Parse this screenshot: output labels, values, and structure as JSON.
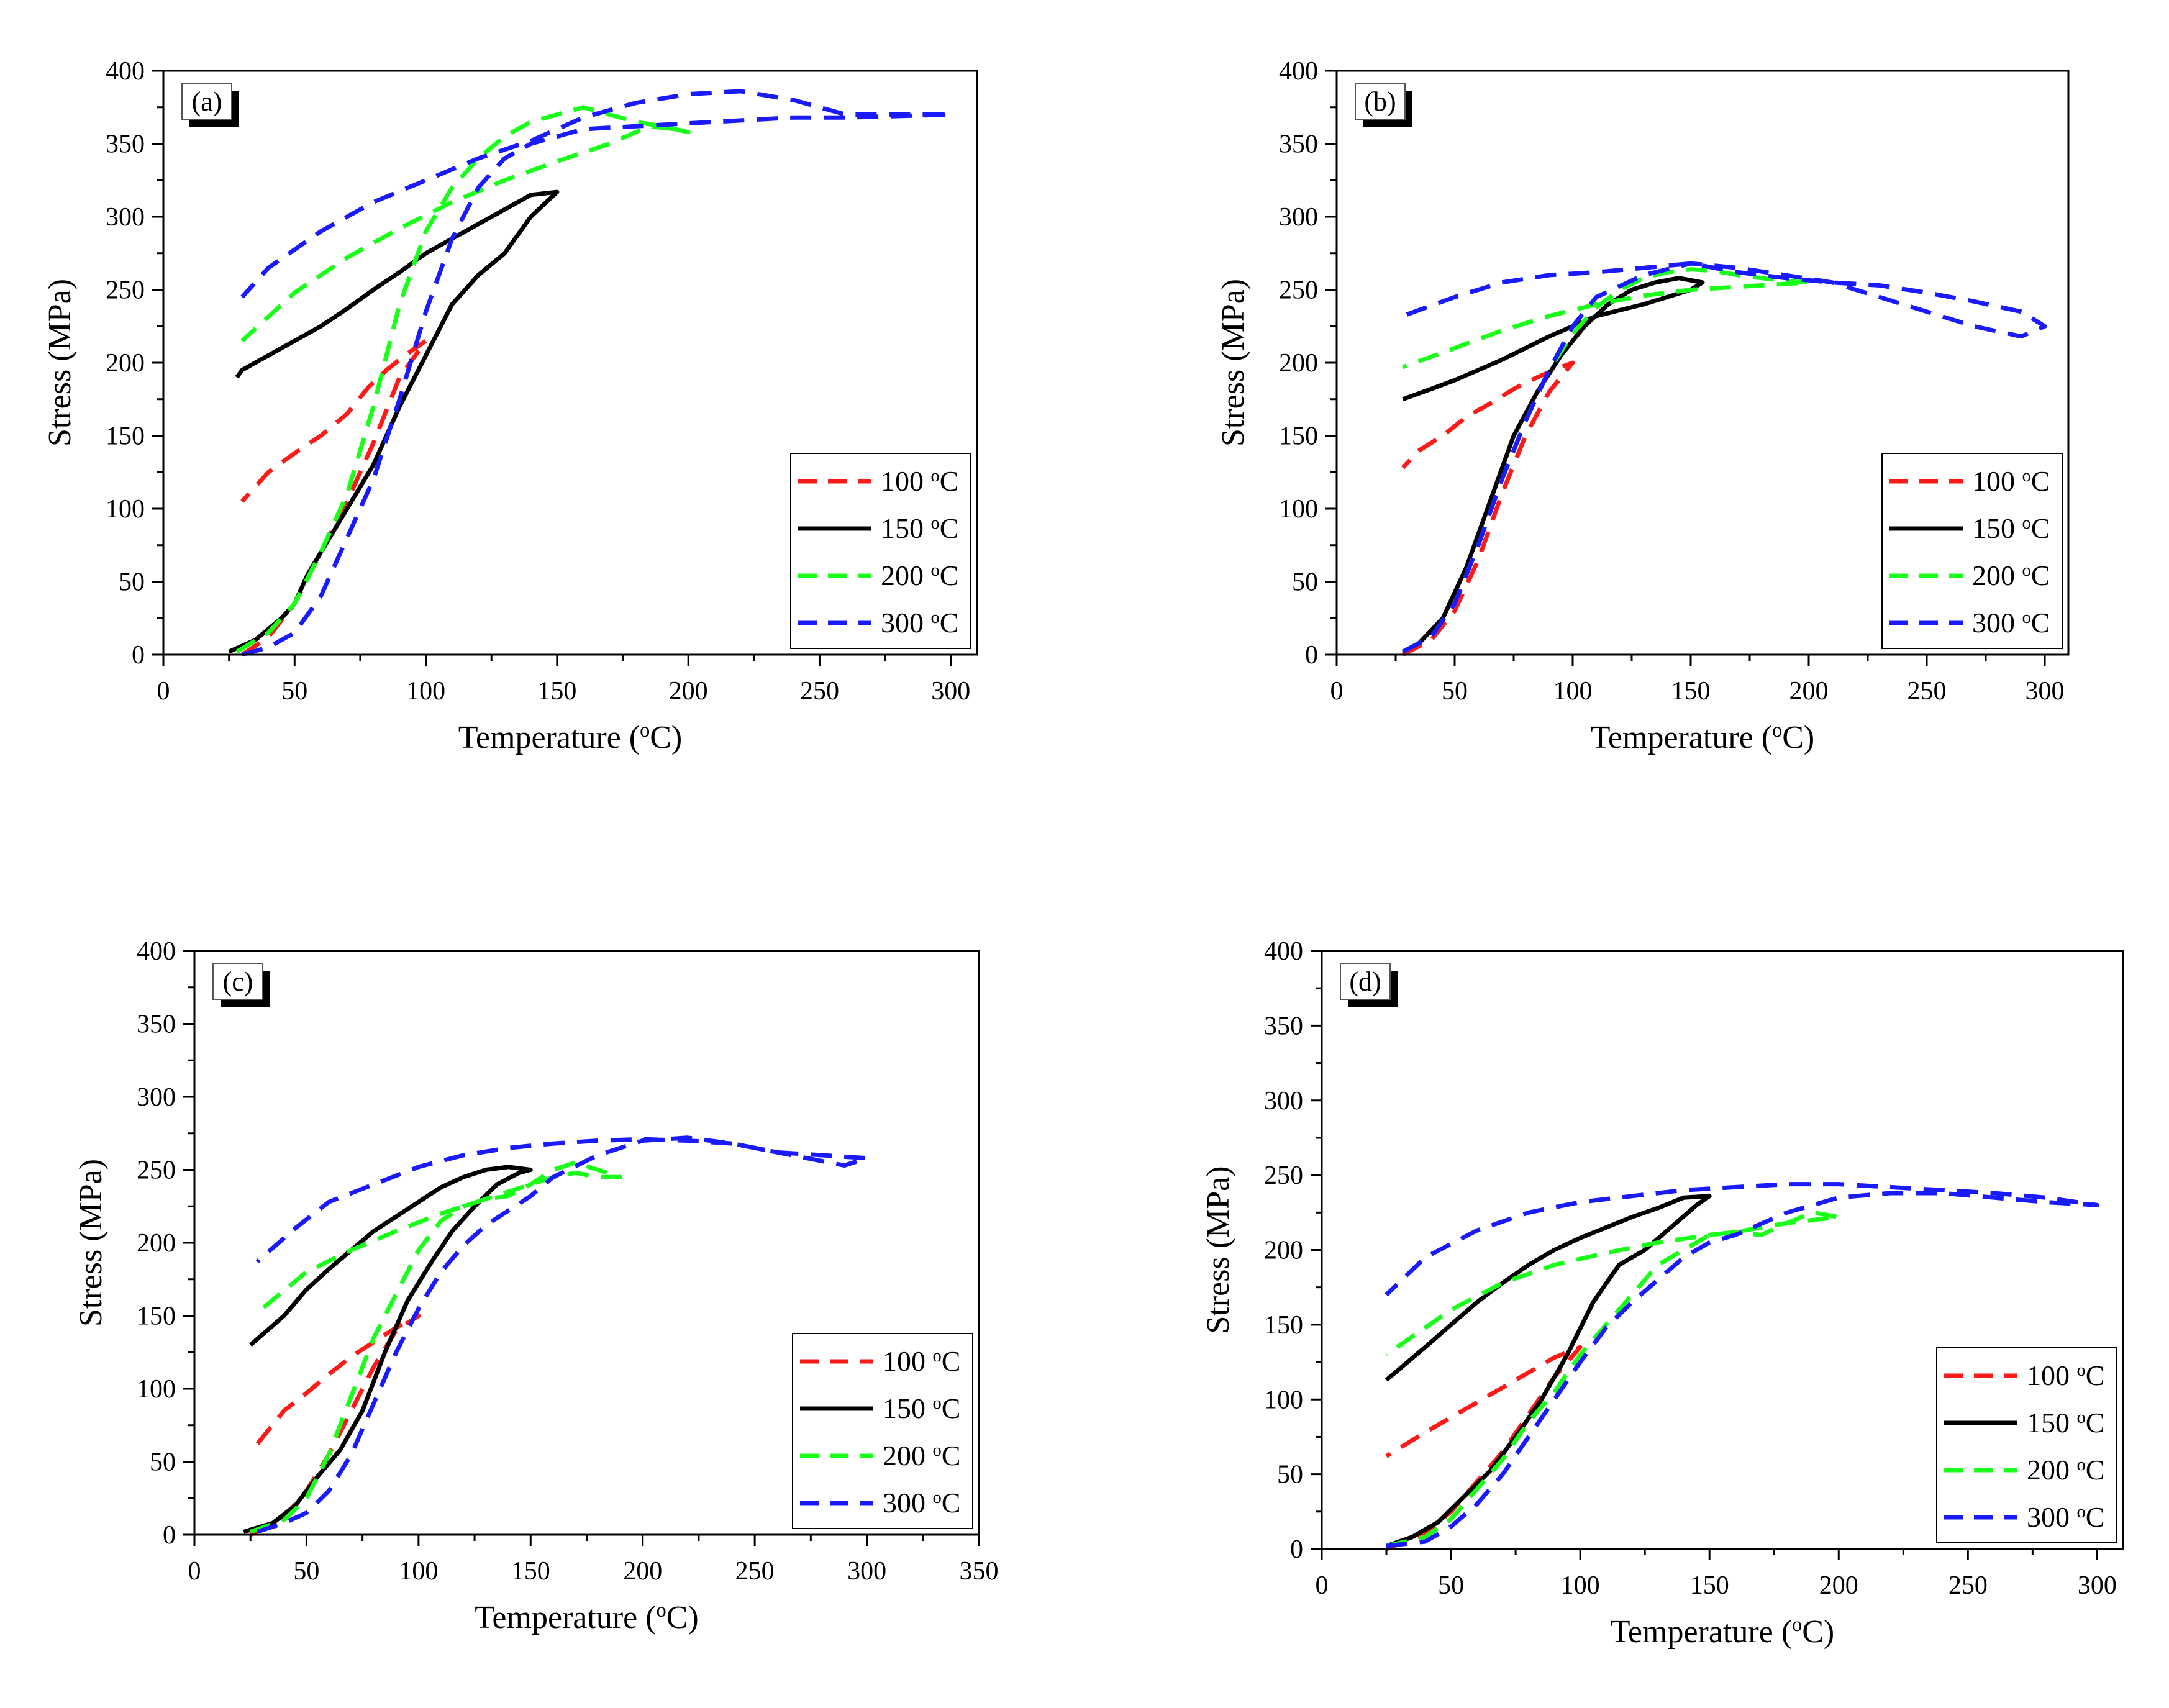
{
  "chart_data": [
    {
      "panel_label": "(a)",
      "type": "line",
      "xlabel": "Temperature (°C)",
      "ylabel": "Stress (MPa)",
      "xlim": [
        0,
        310
      ],
      "ylim": [
        0,
        400
      ],
      "xticks": [
        0,
        50,
        100,
        150,
        200,
        250,
        300
      ],
      "yticks": [
        0,
        50,
        100,
        150,
        200,
        250,
        300,
        350,
        400
      ],
      "legend": "bottom-right",
      "series": [
        {
          "name": "100 °C",
          "color": "#ff1a1a",
          "style": "dashed",
          "x": [
            30,
            40,
            50,
            60,
            70,
            80,
            90,
            100,
            92,
            85,
            78,
            70,
            60,
            50,
            40,
            30
          ],
          "y": [
            0,
            12,
            35,
            70,
            105,
            145,
            190,
            215,
            205,
            195,
            183,
            165,
            150,
            138,
            125,
            105
          ]
        },
        {
          "name": "150 °C",
          "color": "#000000",
          "style": "solid",
          "x": [
            25,
            35,
            45,
            50,
            55,
            60,
            70,
            80,
            90,
            100,
            110,
            120,
            130,
            140,
            150,
            140,
            130,
            120,
            110,
            100,
            90,
            80,
            70,
            60,
            50,
            40,
            30,
            28
          ],
          "y": [
            2,
            10,
            25,
            35,
            55,
            70,
            100,
            130,
            170,
            205,
            240,
            260,
            275,
            300,
            317,
            315,
            305,
            295,
            285,
            275,
            262,
            250,
            237,
            225,
            215,
            205,
            195,
            190
          ]
        },
        {
          "name": "200 °C",
          "color": "#1aff1a",
          "style": "dashed",
          "x": [
            28,
            40,
            50,
            60,
            70,
            80,
            90,
            100,
            110,
            120,
            130,
            140,
            150,
            160,
            170,
            180,
            190,
            200,
            195,
            185,
            170,
            150,
            130,
            110,
            90,
            70,
            50,
            30
          ],
          "y": [
            2,
            15,
            35,
            70,
            110,
            170,
            240,
            290,
            320,
            340,
            355,
            365,
            370,
            375,
            370,
            365,
            362,
            358,
            360,
            362,
            350,
            338,
            325,
            310,
            292,
            272,
            248,
            215
          ]
        },
        {
          "name": "300 °C",
          "color": "#1a1aff",
          "style": "dashed",
          "x": [
            30,
            40,
            50,
            60,
            70,
            80,
            90,
            100,
            110,
            120,
            130,
            140,
            150,
            160,
            180,
            200,
            220,
            240,
            260,
            280,
            300,
            280,
            260,
            240,
            220,
            200,
            180,
            160,
            140,
            120,
            100,
            80,
            60,
            40,
            30
          ],
          "y": [
            0,
            5,
            15,
            40,
            80,
            120,
            175,
            235,
            285,
            320,
            340,
            350,
            355,
            360,
            362,
            364,
            366,
            368,
            368,
            369,
            370,
            370,
            370,
            380,
            386,
            384,
            378,
            368,
            352,
            340,
            325,
            310,
            290,
            265,
            245
          ]
        }
      ]
    },
    {
      "panel_label": "(b)",
      "type": "line",
      "xlabel": "Temperature (°C)",
      "ylabel": "Stress (MPa)",
      "xlim": [
        0,
        310
      ],
      "ylim": [
        0,
        400
      ],
      "xticks": [
        0,
        50,
        100,
        150,
        200,
        250,
        300
      ],
      "yticks": [
        0,
        50,
        100,
        150,
        200,
        250,
        300,
        350,
        400
      ],
      "legend": "bottom-right",
      "series": [
        {
          "name": "100 °C",
          "color": "#ff1a1a",
          "style": "dashed",
          "x": [
            28,
            40,
            50,
            60,
            70,
            80,
            90,
            100,
            95,
            85,
            75,
            65,
            55,
            45,
            35,
            28
          ],
          "y": [
            0,
            10,
            30,
            65,
            110,
            150,
            180,
            200,
            197,
            190,
            182,
            172,
            163,
            150,
            140,
            128
          ]
        },
        {
          "name": "150 °C",
          "color": "#000000",
          "style": "solid",
          "x": [
            28,
            35,
            45,
            55,
            65,
            75,
            85,
            95,
            105,
            115,
            125,
            135,
            145,
            155,
            150,
            140,
            130,
            120,
            110,
            100,
            90,
            80,
            70,
            60,
            50,
            40,
            28
          ],
          "y": [
            2,
            8,
            25,
            60,
            105,
            150,
            180,
            205,
            225,
            240,
            250,
            255,
            258,
            255,
            250,
            245,
            240,
            236,
            232,
            225,
            218,
            210,
            202,
            195,
            188,
            182,
            175
          ]
        },
        {
          "name": "200 °C",
          "color": "#1aff1a",
          "style": "dashed",
          "x": [
            28,
            40,
            50,
            60,
            70,
            80,
            90,
            100,
            110,
            120,
            130,
            140,
            150,
            160,
            170,
            180,
            190,
            200,
            190,
            170,
            150,
            130,
            110,
            90,
            70,
            50,
            28
          ],
          "y": [
            2,
            12,
            35,
            75,
            120,
            160,
            195,
            220,
            238,
            250,
            258,
            262,
            264,
            263,
            260,
            258,
            256,
            255,
            254,
            252,
            250,
            246,
            240,
            232,
            222,
            210,
            197
          ]
        },
        {
          "name": "300 °C",
          "color": "#1a1aff",
          "style": "dashed",
          "x": [
            28,
            40,
            50,
            60,
            70,
            80,
            90,
            100,
            110,
            130,
            150,
            170,
            190,
            210,
            230,
            250,
            270,
            290,
            300,
            290,
            270,
            250,
            230,
            210,
            190,
            170,
            150,
            130,
            110,
            90,
            70,
            50,
            28
          ],
          "y": [
            2,
            12,
            35,
            75,
            120,
            160,
            195,
            225,
            245,
            260,
            268,
            265,
            260,
            255,
            245,
            235,
            225,
            218,
            225,
            235,
            242,
            248,
            253,
            255,
            258,
            262,
            268,
            265,
            262,
            260,
            255,
            245,
            232
          ]
        }
      ]
    },
    {
      "panel_label": "(c)",
      "type": "line",
      "xlabel": "Temperature (°C)",
      "ylabel": "Stress (MPa)",
      "xlim": [
        0,
        350
      ],
      "ylim": [
        0,
        400
      ],
      "xticks": [
        0,
        50,
        100,
        150,
        200,
        250,
        300,
        350
      ],
      "yticks": [
        0,
        50,
        100,
        150,
        200,
        250,
        300,
        350,
        400
      ],
      "legend": "bottom-right",
      "series": [
        {
          "name": "100 °C",
          "color": "#ff1a1a",
          "style": "dashed",
          "x": [
            25,
            40,
            50,
            60,
            70,
            80,
            90,
            100,
            90,
            80,
            70,
            60,
            50,
            40,
            28
          ],
          "y": [
            0,
            12,
            30,
            55,
            85,
            115,
            140,
            150,
            142,
            132,
            122,
            110,
            97,
            85,
            62
          ]
        },
        {
          "name": "150 °C",
          "color": "#000000",
          "style": "solid",
          "x": [
            22,
            35,
            45,
            55,
            65,
            75,
            85,
            95,
            105,
            115,
            125,
            135,
            145,
            150,
            140,
            130,
            120,
            110,
            100,
            90,
            80,
            70,
            60,
            50,
            40,
            25
          ],
          "y": [
            2,
            8,
            20,
            40,
            58,
            85,
            125,
            160,
            185,
            208,
            225,
            240,
            248,
            250,
            252,
            250,
            245,
            238,
            228,
            218,
            208,
            195,
            182,
            168,
            150,
            130
          ]
        },
        {
          "name": "200 °C",
          "color": "#1aff1a",
          "style": "dashed",
          "x": [
            25,
            40,
            50,
            60,
            70,
            80,
            90,
            100,
            110,
            120,
            130,
            140,
            150,
            160,
            170,
            180,
            190,
            180,
            170,
            160,
            150,
            130,
            110,
            90,
            70,
            50,
            28
          ],
          "y": [
            2,
            10,
            25,
            55,
            95,
            135,
            165,
            195,
            215,
            225,
            230,
            232,
            240,
            250,
            255,
            250,
            245,
            245,
            248,
            245,
            240,
            230,
            220,
            208,
            195,
            180,
            152
          ]
        },
        {
          "name": "300 °C",
          "color": "#1a1aff",
          "style": "dashed",
          "x": [
            28,
            40,
            50,
            60,
            70,
            80,
            90,
            100,
            110,
            120,
            130,
            140,
            150,
            160,
            180,
            200,
            220,
            240,
            260,
            280,
            290,
            300,
            280,
            260,
            240,
            220,
            200,
            180,
            160,
            140,
            120,
            100,
            80,
            60,
            45,
            28
          ],
          "y": [
            2,
            8,
            15,
            30,
            55,
            90,
            125,
            155,
            180,
            198,
            212,
            222,
            232,
            245,
            260,
            270,
            272,
            268,
            262,
            256,
            253,
            258,
            260,
            262,
            268,
            270,
            271,
            270,
            268,
            265,
            260,
            252,
            240,
            228,
            210,
            187
          ]
        }
      ]
    },
    {
      "panel_label": "(d)",
      "type": "line",
      "xlabel": "Temperature (°C)",
      "ylabel": "Stress (MPa)",
      "xlim": [
        0,
        310
      ],
      "ylim": [
        0,
        400
      ],
      "xticks": [
        0,
        50,
        100,
        150,
        200,
        250,
        300
      ],
      "yticks": [
        0,
        50,
        100,
        150,
        200,
        250,
        300,
        350,
        400
      ],
      "legend": "bottom-right",
      "series": [
        {
          "name": "100 °C",
          "color": "#ff1a1a",
          "style": "dashed",
          "x": [
            25,
            40,
            50,
            60,
            70,
            80,
            90,
            100,
            90,
            80,
            70,
            60,
            50,
            40,
            25
          ],
          "y": [
            0,
            10,
            25,
            45,
            65,
            90,
            115,
            135,
            128,
            118,
            108,
            98,
            88,
            78,
            62
          ]
        },
        {
          "name": "150 °C",
          "color": "#000000",
          "style": "solid",
          "x": [
            25,
            35,
            45,
            55,
            65,
            75,
            85,
            95,
            105,
            115,
            125,
            135,
            145,
            150,
            140,
            130,
            120,
            110,
            100,
            90,
            80,
            70,
            60,
            50,
            40,
            25
          ],
          "y": [
            2,
            8,
            18,
            35,
            52,
            75,
            100,
            130,
            165,
            190,
            200,
            215,
            230,
            236,
            235,
            228,
            222,
            215,
            208,
            200,
            190,
            178,
            165,
            150,
            135,
            113
          ]
        },
        {
          "name": "200 °C",
          "color": "#1aff1a",
          "style": "dashed",
          "x": [
            25,
            40,
            50,
            60,
            70,
            80,
            90,
            100,
            110,
            120,
            130,
            140,
            150,
            160,
            170,
            180,
            190,
            200,
            190,
            180,
            170,
            160,
            150,
            130,
            110,
            90,
            70,
            50,
            25
          ],
          "y": [
            2,
            8,
            20,
            40,
            60,
            85,
            105,
            130,
            150,
            170,
            190,
            200,
            210,
            212,
            210,
            218,
            225,
            222,
            220,
            218,
            215,
            212,
            210,
            205,
            198,
            190,
            178,
            160,
            130
          ]
        },
        {
          "name": "300 °C",
          "color": "#1a1aff",
          "style": "dashed",
          "x": [
            25,
            40,
            50,
            60,
            70,
            80,
            90,
            100,
            110,
            120,
            130,
            140,
            150,
            160,
            180,
            200,
            220,
            240,
            260,
            280,
            300,
            280,
            260,
            240,
            220,
            200,
            180,
            160,
            140,
            120,
            100,
            80,
            60,
            40,
            25
          ],
          "y": [
            2,
            5,
            15,
            30,
            50,
            75,
            100,
            125,
            148,
            165,
            180,
            195,
            205,
            210,
            225,
            235,
            238,
            238,
            235,
            232,
            230,
            235,
            238,
            240,
            242,
            244,
            244,
            242,
            240,
            236,
            232,
            225,
            213,
            195,
            170
          ]
        }
      ]
    }
  ]
}
